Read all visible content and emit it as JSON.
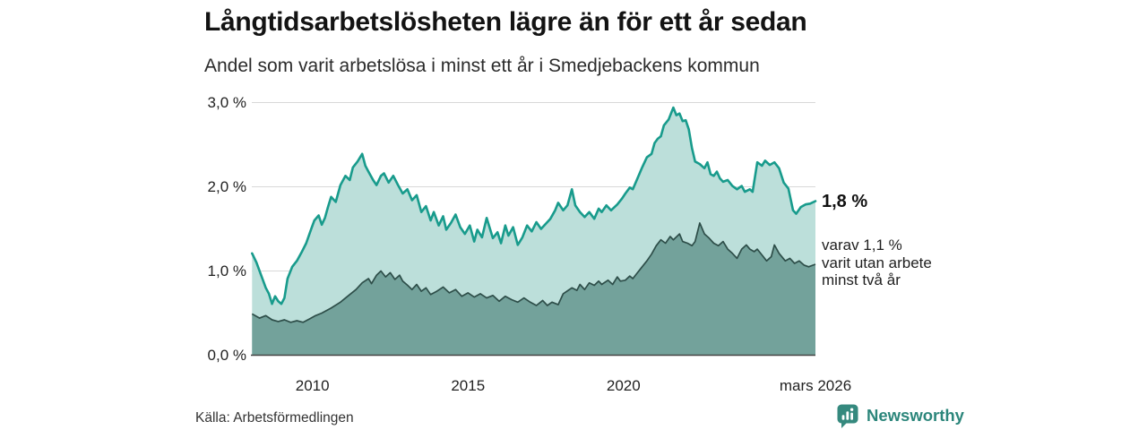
{
  "chart_data": {
    "type": "area",
    "title": "Långtidsarbetslösheten lägre än för ett år sedan",
    "subtitle": "Andel som varit arbetslösa i minst ett år i Smedjebackens kommun",
    "source": "Källa: Arbetsförmedlingen",
    "xlim": [
      2008.05,
      2026.17
    ],
    "ylim": [
      0,
      3.2
    ],
    "grid": "horizontal",
    "legend": "none",
    "y_ticks": [
      {
        "value": 0,
        "label": "0,0 %"
      },
      {
        "value": 1,
        "label": "1,0 %"
      },
      {
        "value": 2,
        "label": "2,0 %"
      },
      {
        "value": 3,
        "label": "3,0 %"
      }
    ],
    "x_ticks": [
      {
        "value": 2010,
        "label": "2010"
      },
      {
        "value": 2015,
        "label": "2015"
      },
      {
        "value": 2020,
        "label": "2020"
      },
      {
        "value": 2026.17,
        "label": "mars 2026"
      }
    ],
    "annotations": {
      "end_label": "1,8 %",
      "sub_label_lines": [
        "varav 1,1 %",
        "varit utan arbete",
        "minst två år"
      ]
    },
    "series": [
      {
        "name": "Andel arbetslösa minst ett år",
        "line_color": "#189b8c",
        "fill_color": "#bcdfda",
        "line_width": 2.6,
        "latest_value_label": "1,8 %",
        "x": [
          2008.06,
          2008.2,
          2008.35,
          2008.5,
          2008.6,
          2008.7,
          2008.8,
          2008.9,
          2009.0,
          2009.1,
          2009.2,
          2009.35,
          2009.5,
          2009.65,
          2009.8,
          2009.95,
          2010.06,
          2010.2,
          2010.3,
          2010.4,
          2010.5,
          2010.6,
          2010.75,
          2010.9,
          2011.06,
          2011.2,
          2011.3,
          2011.45,
          2011.6,
          2011.7,
          2011.8,
          2011.95,
          2012.06,
          2012.2,
          2012.3,
          2012.45,
          2012.6,
          2012.75,
          2012.9,
          2013.05,
          2013.2,
          2013.35,
          2013.5,
          2013.65,
          2013.8,
          2013.9,
          2014.06,
          2014.2,
          2014.3,
          2014.45,
          2014.6,
          2014.75,
          2014.9,
          2015.06,
          2015.2,
          2015.3,
          2015.45,
          2015.6,
          2015.8,
          2015.95,
          2016.06,
          2016.2,
          2016.3,
          2016.45,
          2016.6,
          2016.75,
          2016.9,
          2017.05,
          2017.2,
          2017.35,
          2017.5,
          2017.65,
          2017.8,
          2017.9,
          2018.06,
          2018.2,
          2018.34,
          2018.45,
          2018.6,
          2018.75,
          2018.9,
          2019.06,
          2019.2,
          2019.3,
          2019.45,
          2019.6,
          2019.8,
          2019.95,
          2020.06,
          2020.2,
          2020.3,
          2020.45,
          2020.6,
          2020.75,
          2020.9,
          2021.0,
          2021.1,
          2021.2,
          2021.3,
          2021.45,
          2021.6,
          2021.7,
          2021.8,
          2021.9,
          2022.0,
          2022.1,
          2022.2,
          2022.3,
          2022.45,
          2022.6,
          2022.7,
          2022.8,
          2022.9,
          2023.0,
          2023.1,
          2023.2,
          2023.35,
          2023.5,
          2023.65,
          2023.8,
          2023.9,
          2024.06,
          2024.15,
          2024.3,
          2024.45,
          2024.55,
          2024.7,
          2024.85,
          2025.0,
          2025.15,
          2025.3,
          2025.45,
          2025.55,
          2025.7,
          2025.85,
          2026.0,
          2026.17
        ],
        "values": [
          1.21,
          1.1,
          0.95,
          0.8,
          0.73,
          0.61,
          0.7,
          0.64,
          0.61,
          0.68,
          0.91,
          1.05,
          1.12,
          1.22,
          1.33,
          1.49,
          1.6,
          1.66,
          1.55,
          1.63,
          1.76,
          1.88,
          1.82,
          2.02,
          2.13,
          2.08,
          2.23,
          2.3,
          2.39,
          2.25,
          2.18,
          2.08,
          2.02,
          2.13,
          2.16,
          2.05,
          2.13,
          2.02,
          1.92,
          1.97,
          1.84,
          1.9,
          1.7,
          1.77,
          1.6,
          1.7,
          1.54,
          1.65,
          1.49,
          1.57,
          1.67,
          1.52,
          1.44,
          1.54,
          1.35,
          1.49,
          1.4,
          1.63,
          1.39,
          1.46,
          1.33,
          1.54,
          1.42,
          1.52,
          1.31,
          1.4,
          1.54,
          1.47,
          1.58,
          1.5,
          1.56,
          1.62,
          1.72,
          1.81,
          1.72,
          1.78,
          1.97,
          1.78,
          1.7,
          1.64,
          1.7,
          1.62,
          1.74,
          1.7,
          1.78,
          1.72,
          1.79,
          1.86,
          1.92,
          1.99,
          1.97,
          2.1,
          2.23,
          2.35,
          2.39,
          2.52,
          2.57,
          2.6,
          2.73,
          2.8,
          2.94,
          2.85,
          2.87,
          2.78,
          2.79,
          2.68,
          2.46,
          2.3,
          2.27,
          2.22,
          2.29,
          2.15,
          2.13,
          2.18,
          2.1,
          2.06,
          2.08,
          2.01,
          1.97,
          2.01,
          1.94,
          1.97,
          1.94,
          2.29,
          2.25,
          2.31,
          2.26,
          2.29,
          2.22,
          2.05,
          1.98,
          1.72,
          1.68,
          1.76,
          1.79,
          1.8,
          1.83
        ]
      },
      {
        "name": "Varav utan arbete minst två år",
        "line_color": "#2e4e49",
        "fill_color": "#73a29b",
        "line_width": 1.7,
        "latest_value_label": "1,1 %",
        "x": [
          2008.06,
          2008.3,
          2008.5,
          2008.7,
          2008.9,
          2009.1,
          2009.3,
          2009.5,
          2009.7,
          2009.9,
          2010.1,
          2010.3,
          2010.6,
          2010.9,
          2011.2,
          2011.4,
          2011.6,
          2011.8,
          2011.9,
          2012.06,
          2012.2,
          2012.35,
          2012.5,
          2012.65,
          2012.8,
          2012.9,
          2013.06,
          2013.2,
          2013.35,
          2013.5,
          2013.65,
          2013.8,
          2014.0,
          2014.2,
          2014.4,
          2014.6,
          2014.8,
          2015.0,
          2015.2,
          2015.4,
          2015.6,
          2015.8,
          2016.0,
          2016.2,
          2016.4,
          2016.6,
          2016.8,
          2017.0,
          2017.2,
          2017.4,
          2017.55,
          2017.7,
          2017.9,
          2018.06,
          2018.34,
          2018.5,
          2018.6,
          2018.75,
          2018.9,
          2019.06,
          2019.2,
          2019.3,
          2019.5,
          2019.65,
          2019.8,
          2019.9,
          2020.06,
          2020.2,
          2020.3,
          2020.45,
          2020.6,
          2020.75,
          2020.9,
          2021.05,
          2021.2,
          2021.35,
          2021.5,
          2021.6,
          2021.8,
          2021.9,
          2022.06,
          2022.2,
          2022.3,
          2022.45,
          2022.6,
          2022.75,
          2022.9,
          2023.05,
          2023.2,
          2023.35,
          2023.5,
          2023.65,
          2023.8,
          2023.95,
          2024.06,
          2024.2,
          2024.3,
          2024.45,
          2024.6,
          2024.75,
          2024.85,
          2025.0,
          2025.2,
          2025.35,
          2025.5,
          2025.65,
          2025.8,
          2025.95,
          2026.17
        ],
        "values": [
          0.49,
          0.44,
          0.47,
          0.42,
          0.4,
          0.42,
          0.39,
          0.41,
          0.39,
          0.43,
          0.47,
          0.5,
          0.56,
          0.63,
          0.72,
          0.78,
          0.86,
          0.91,
          0.85,
          0.95,
          1.0,
          0.93,
          0.98,
          0.9,
          0.95,
          0.88,
          0.83,
          0.78,
          0.84,
          0.76,
          0.8,
          0.72,
          0.76,
          0.81,
          0.74,
          0.78,
          0.7,
          0.74,
          0.69,
          0.73,
          0.68,
          0.71,
          0.64,
          0.7,
          0.66,
          0.63,
          0.68,
          0.63,
          0.59,
          0.65,
          0.59,
          0.63,
          0.6,
          0.73,
          0.8,
          0.77,
          0.84,
          0.78,
          0.86,
          0.83,
          0.88,
          0.84,
          0.89,
          0.84,
          0.93,
          0.88,
          0.89,
          0.94,
          0.91,
          0.98,
          1.05,
          1.12,
          1.2,
          1.3,
          1.37,
          1.33,
          1.41,
          1.37,
          1.44,
          1.35,
          1.33,
          1.3,
          1.35,
          1.57,
          1.44,
          1.39,
          1.33,
          1.3,
          1.35,
          1.26,
          1.21,
          1.15,
          1.26,
          1.31,
          1.26,
          1.23,
          1.26,
          1.19,
          1.12,
          1.17,
          1.31,
          1.21,
          1.12,
          1.15,
          1.09,
          1.12,
          1.07,
          1.05,
          1.08
        ]
      }
    ]
  },
  "footer": {
    "brand": "Newsworthy"
  },
  "colors": {
    "grid": "#d8d8d8",
    "axis": "#454545",
    "brand": "#2c867b",
    "logo_bg": "#35897e",
    "title_text": "#131313",
    "body_text": "#1f1f1f"
  }
}
